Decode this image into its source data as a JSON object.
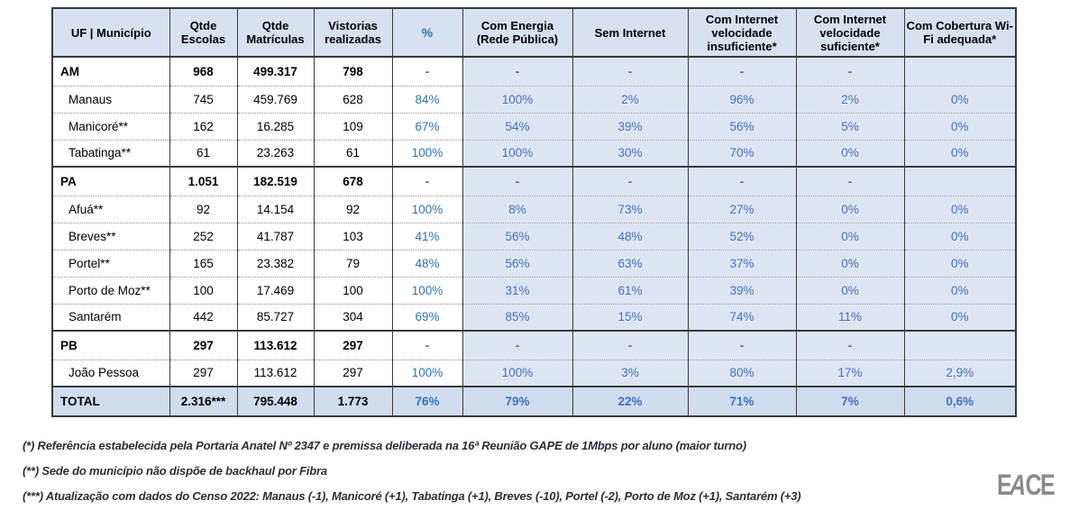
{
  "colors": {
    "header_bg": "#d8e1f0",
    "cell_blue_bg": "#dde5f3",
    "total_bg": "#cfddee",
    "accent_blue": "#4472c4",
    "pct_blue": "#2e75b6",
    "border": "#3a3a3a"
  },
  "table": {
    "columns": [
      {
        "key": "name",
        "label": "UF | Município"
      },
      {
        "key": "escolas",
        "label": "Qtde Escolas"
      },
      {
        "key": "matriculas",
        "label": "Qtde Matrículas"
      },
      {
        "key": "vistorias",
        "label": "Vistorias realizadas"
      },
      {
        "key": "pct",
        "label": "%"
      },
      {
        "key": "energia",
        "label": "Com Energia (Rede Pública)"
      },
      {
        "key": "sem_internet",
        "label": "Sem Internet"
      },
      {
        "key": "insuficiente",
        "label": "Com Internet velocidade insuficiente*"
      },
      {
        "key": "suficiente",
        "label": "Com Internet velocidade suficiente*"
      },
      {
        "key": "wifi",
        "label": "Com Cobertura Wi-Fi adequada*"
      }
    ],
    "rows": [
      {
        "type": "state",
        "name": "AM",
        "escolas": "968",
        "matriculas": "499.317",
        "vistorias": "798",
        "pct": "-",
        "energia": "-",
        "sem_internet": "-",
        "insuficiente": "-",
        "suficiente": "-",
        "wifi": ""
      },
      {
        "type": "muni",
        "name": "Manaus",
        "escolas": "745",
        "matriculas": "459.769",
        "vistorias": "628",
        "pct": "84%",
        "energia": "100%",
        "sem_internet": "2%",
        "insuficiente": "96%",
        "suficiente": "2%",
        "wifi": "0%"
      },
      {
        "type": "muni",
        "name": "Manicoré**",
        "escolas": "162",
        "matriculas": "16.285",
        "vistorias": "109",
        "pct": "67%",
        "energia": "54%",
        "sem_internet": "39%",
        "insuficiente": "56%",
        "suficiente": "5%",
        "wifi": "0%"
      },
      {
        "type": "muni",
        "name": "Tabatinga**",
        "escolas": "61",
        "matriculas": "23.263",
        "vistorias": "61",
        "pct": "100%",
        "energia": "100%",
        "sem_internet": "30%",
        "insuficiente": "70%",
        "suficiente": "0%",
        "wifi": "0%"
      },
      {
        "type": "state",
        "name": "PA",
        "escolas": "1.051",
        "matriculas": "182.519",
        "vistorias": "678",
        "pct": "-",
        "energia": "-",
        "sem_internet": "-",
        "insuficiente": "-",
        "suficiente": "-",
        "wifi": ""
      },
      {
        "type": "muni",
        "name": "Afuá**",
        "escolas": "92",
        "matriculas": "14.154",
        "vistorias": "92",
        "pct": "100%",
        "energia": "8%",
        "sem_internet": "73%",
        "insuficiente": "27%",
        "suficiente": "0%",
        "wifi": "0%"
      },
      {
        "type": "muni",
        "name": "Breves**",
        "escolas": "252",
        "matriculas": "41.787",
        "vistorias": "103",
        "pct": "41%",
        "energia": "56%",
        "sem_internet": "48%",
        "insuficiente": "52%",
        "suficiente": "0%",
        "wifi": "0%"
      },
      {
        "type": "muni",
        "name": "Portel**",
        "escolas": "165",
        "matriculas": "23.382",
        "vistorias": "79",
        "pct": "48%",
        "energia": "56%",
        "sem_internet": "63%",
        "insuficiente": "37%",
        "suficiente": "0%",
        "wifi": "0%"
      },
      {
        "type": "muni",
        "name": "Porto de Moz**",
        "escolas": "100",
        "matriculas": "17.469",
        "vistorias": "100",
        "pct": "100%",
        "energia": "31%",
        "sem_internet": "61%",
        "insuficiente": "39%",
        "suficiente": "0%",
        "wifi": "0%"
      },
      {
        "type": "muni",
        "name": "Santarém",
        "escolas": "442",
        "matriculas": "85.727",
        "vistorias": "304",
        "pct": "69%",
        "energia": "85%",
        "sem_internet": "15%",
        "insuficiente": "74%",
        "suficiente": "11%",
        "wifi": "0%"
      },
      {
        "type": "state",
        "name": "PB",
        "escolas": "297",
        "matriculas": "113.612",
        "vistorias": "297",
        "pct": "-",
        "energia": "-",
        "sem_internet": "-",
        "insuficiente": "-",
        "suficiente": "-",
        "wifi": ""
      },
      {
        "type": "muni",
        "name": "João Pessoa",
        "escolas": "297",
        "matriculas": "113.612",
        "vistorias": "297",
        "pct": "100%",
        "energia": "100%",
        "sem_internet": "3%",
        "insuficiente": "80%",
        "suficiente": "17%",
        "wifi": "2,9%"
      },
      {
        "type": "total",
        "name": "TOTAL",
        "escolas": "2.316***",
        "matriculas": "795.448",
        "vistorias": "1.773",
        "pct": "76%",
        "energia": "79%",
        "sem_internet": "22%",
        "insuficiente": "71%",
        "suficiente": "7%",
        "wifi": "0,6%"
      }
    ]
  },
  "footnotes": [
    "(*) Referência estabelecida pela Portaria Anatel Nº 2347 e premissa deliberada na 16ª Reunião GAPE de 1Mbps por aluno (maior turno)",
    "(**) Sede do município não dispõe de backhaul por Fibra",
    "(***) Atualização com dados do Censo 2022: Manaus (-1), Manicoré (+1), Tabatinga (+1), Breves (-10), Portel (-2), Porto de Moz (+1), Santarém (+3)"
  ],
  "logo": {
    "letters": [
      "E",
      "A",
      "C",
      "E"
    ]
  }
}
